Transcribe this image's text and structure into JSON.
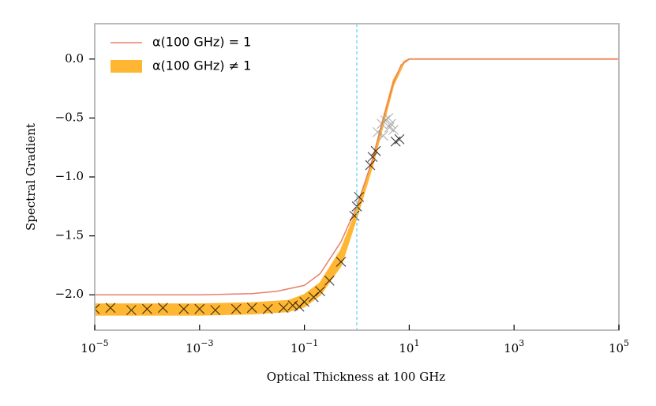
{
  "chart_data": {
    "type": "line",
    "xlabel": "Optical Thickness at 100 GHz",
    "ylabel": "Spectral Gradient",
    "xscale": "log",
    "xlim": [
      1e-05,
      100000
    ],
    "ylim": [
      -2.3,
      0.3
    ],
    "xticks": [
      {
        "value": 1e-05,
        "label": "10",
        "exponent": "−5"
      },
      {
        "value": 0.001,
        "label": "10",
        "exponent": "−3"
      },
      {
        "value": 0.1,
        "label": "10",
        "exponent": "−1"
      },
      {
        "value": 10,
        "label": "10",
        "exponent": "1"
      },
      {
        "value": 1000,
        "label": "10",
        "exponent": "3"
      },
      {
        "value": 100000,
        "label": "10",
        "exponent": "5"
      }
    ],
    "yticks": [
      {
        "value": 0,
        "label": "0.0"
      },
      {
        "value": -0.5,
        "label": "−0.5"
      },
      {
        "value": -1,
        "label": "−1.0"
      },
      {
        "value": -1.5,
        "label": "−1.5"
      },
      {
        "value": -2,
        "label": "−2.0"
      }
    ],
    "vline": {
      "x": 1,
      "color": "#5bd3f0"
    },
    "legend": "upper left",
    "series": [
      {
        "name": "α(100 GHz) = 1",
        "kind": "line",
        "color": "#e8806a",
        "x": [
          1e-05,
          0.001,
          0.01,
          0.03,
          0.1,
          0.2,
          0.5,
          1,
          2,
          3,
          5,
          7,
          10,
          100000
        ],
        "values": [
          -2,
          -2,
          -1.99,
          -1.97,
          -1.92,
          -1.82,
          -1.55,
          -1.25,
          -0.85,
          -0.55,
          -0.2,
          -0.05,
          0,
          0
        ]
      },
      {
        "name": "α(100 GHz) ≠ 1",
        "kind": "band",
        "color": "#ffb733",
        "x": [
          1e-05,
          0.001,
          0.01,
          0.05,
          0.1,
          0.2,
          0.5,
          1,
          2,
          3,
          5,
          8,
          10,
          100000
        ],
        "upper": [
          -2.08,
          -2.08,
          -2.07,
          -2.05,
          -2.0,
          -1.9,
          -1.62,
          -1.28,
          -0.85,
          -0.55,
          -0.18,
          -0.02,
          0,
          0
        ],
        "lower": [
          -2.17,
          -2.17,
          -2.16,
          -2.14,
          -2.1,
          -2.0,
          -1.75,
          -1.34,
          -0.9,
          -0.6,
          -0.22,
          -0.03,
          0,
          0
        ]
      },
      {
        "kind": "scatter",
        "color": "#000000",
        "x": [
          1e-05,
          2e-05,
          5e-05,
          0.0001,
          0.0002,
          0.0005,
          0.001,
          0.002,
          0.005,
          0.01,
          0.02,
          0.04,
          0.06,
          0.08,
          0.1,
          0.15,
          0.2,
          0.3,
          0.5,
          0.9,
          1,
          1.1,
          1.8,
          2,
          2.3,
          5.5,
          6.5
        ],
        "values": [
          -2.12,
          -2.11,
          -2.13,
          -2.12,
          -2.11,
          -2.12,
          -2.12,
          -2.13,
          -2.12,
          -2.11,
          -2.12,
          -2.11,
          -2.09,
          -2.1,
          -2.06,
          -2.02,
          -1.97,
          -1.88,
          -1.72,
          -1.33,
          -1.25,
          -1.17,
          -0.9,
          -0.83,
          -0.78,
          -0.7,
          -0.68
        ]
      },
      {
        "kind": "scatter",
        "color": "#999999",
        "x": [
          2.5,
          3,
          3.5,
          4,
          4.5,
          5,
          3.2,
          4.2
        ],
        "values": [
          -0.62,
          -0.55,
          -0.52,
          -0.5,
          -0.55,
          -0.6,
          -0.65,
          -0.58
        ]
      }
    ]
  }
}
